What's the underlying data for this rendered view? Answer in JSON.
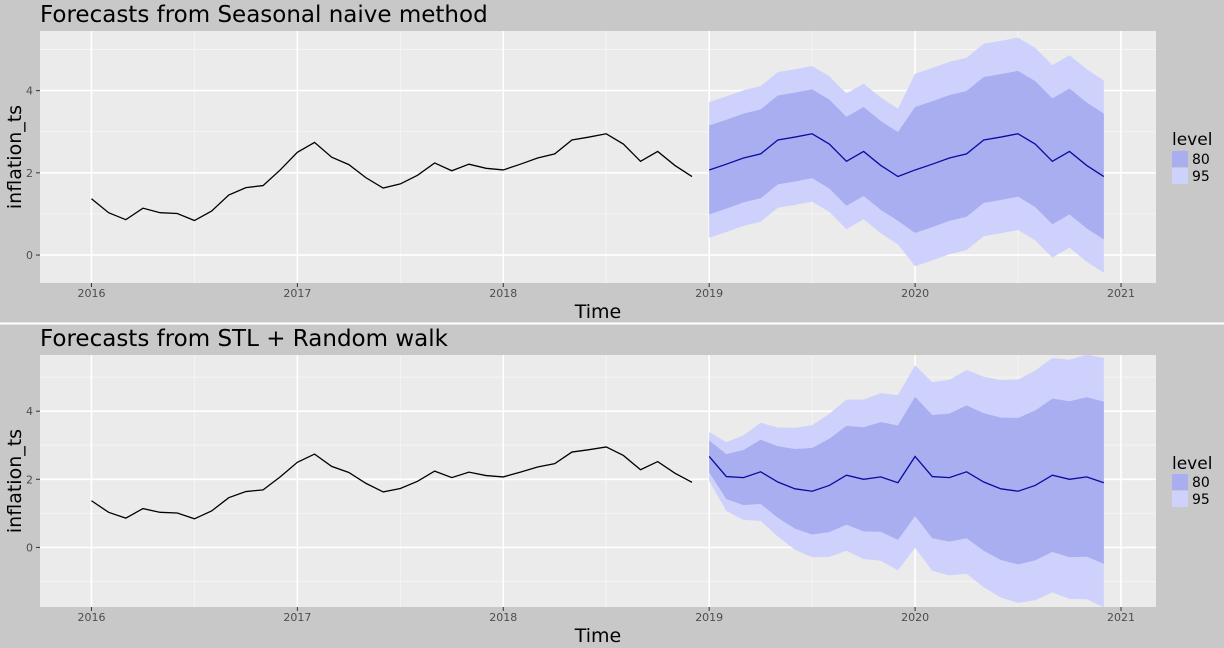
{
  "colors": {
    "background": "#c8c8c8",
    "panel": "#ebebeb",
    "grid_major": "#ffffff",
    "grid_minor": "#f5f5f5",
    "band80": "#a8aef0",
    "band95": "#cdd1fb",
    "forecast_line": "#0a0aa0",
    "history_line": "#000000",
    "divider": "#ffffff"
  },
  "chart_data": [
    {
      "type": "line",
      "title": "Forecasts from Seasonal naive method",
      "xlabel": "Time",
      "ylabel": "inflation_ts",
      "xlim": [
        2015.75,
        2021.17
      ],
      "ylim": [
        -0.68,
        5.45
      ],
      "x_ticks": [
        2016,
        2017,
        2018,
        2019,
        2020,
        2021
      ],
      "x_tick_labels": [
        "2016",
        "2017",
        "2018",
        "2019",
        "2020",
        "2021"
      ],
      "y_ticks": [
        0,
        2,
        4
      ],
      "y_tick_labels": [
        "0",
        "2",
        "4"
      ],
      "grid": true,
      "legend": {
        "title": "level",
        "position": "right",
        "entries": [
          "80",
          "95"
        ]
      },
      "history": {
        "start": 2016.0,
        "step": 0.08333,
        "values": [
          1.37,
          1.03,
          0.86,
          1.14,
          1.03,
          1.01,
          0.84,
          1.07,
          1.46,
          1.64,
          1.69,
          2.07,
          2.5,
          2.74,
          2.38,
          2.2,
          1.88,
          1.63,
          1.73,
          1.94,
          2.24,
          2.05,
          2.21,
          2.11,
          2.07,
          2.21,
          2.36,
          2.46,
          2.8,
          2.87,
          2.95,
          2.7,
          2.28,
          2.52,
          2.18,
          1.91
        ]
      },
      "forecast": {
        "start": 2019.0,
        "step": 0.08333,
        "mean": [
          2.07,
          2.21,
          2.36,
          2.46,
          2.8,
          2.87,
          2.95,
          2.7,
          2.28,
          2.52,
          2.18,
          1.91,
          2.07,
          2.21,
          2.36,
          2.46,
          2.8,
          2.87,
          2.95,
          2.7,
          2.28,
          2.52,
          2.18,
          1.91
        ],
        "lo80": [
          0.99,
          1.13,
          1.28,
          1.38,
          1.72,
          1.79,
          1.87,
          1.62,
          1.2,
          1.44,
          1.1,
          0.83,
          0.54,
          0.68,
          0.83,
          0.93,
          1.27,
          1.34,
          1.42,
          1.17,
          0.75,
          0.99,
          0.65,
          0.38
        ],
        "hi80": [
          3.15,
          3.29,
          3.44,
          3.54,
          3.88,
          3.95,
          4.03,
          3.78,
          3.36,
          3.6,
          3.26,
          2.99,
          3.6,
          3.74,
          3.89,
          3.99,
          4.33,
          4.4,
          4.48,
          4.23,
          3.81,
          4.05,
          3.71,
          3.44
        ],
        "lo95": [
          0.42,
          0.56,
          0.71,
          0.81,
          1.15,
          1.22,
          1.3,
          1.05,
          0.63,
          0.87,
          0.53,
          0.26,
          -0.27,
          -0.13,
          0.02,
          0.12,
          0.46,
          0.53,
          0.61,
          0.36,
          -0.06,
          0.18,
          -0.16,
          -0.43
        ],
        "hi95": [
          3.72,
          3.86,
          4.01,
          4.11,
          4.45,
          4.52,
          4.6,
          4.35,
          3.93,
          4.17,
          3.83,
          3.56,
          4.41,
          4.55,
          4.7,
          4.8,
          5.14,
          5.21,
          5.29,
          5.04,
          4.62,
          4.86,
          4.52,
          4.25
        ]
      }
    },
    {
      "type": "line",
      "title": "Forecasts from STL +  Random walk",
      "xlabel": "Time",
      "ylabel": "inflation_ts",
      "xlim": [
        2015.75,
        2021.17
      ],
      "ylim": [
        -1.75,
        5.65
      ],
      "x_ticks": [
        2016,
        2017,
        2018,
        2019,
        2020,
        2021
      ],
      "x_tick_labels": [
        "2016",
        "2017",
        "2018",
        "2019",
        "2020",
        "2021"
      ],
      "y_ticks": [
        0,
        2,
        4
      ],
      "y_tick_labels": [
        "0",
        "2",
        "4"
      ],
      "grid": true,
      "legend": {
        "title": "level",
        "position": "right",
        "entries": [
          "80",
          "95"
        ]
      },
      "history": {
        "start": 2016.0,
        "step": 0.08333,
        "values": [
          1.37,
          1.03,
          0.86,
          1.14,
          1.03,
          1.01,
          0.84,
          1.07,
          1.46,
          1.64,
          1.69,
          2.07,
          2.5,
          2.74,
          2.38,
          2.2,
          1.88,
          1.63,
          1.73,
          1.94,
          2.24,
          2.05,
          2.21,
          2.11,
          2.07,
          2.21,
          2.36,
          2.46,
          2.8,
          2.87,
          2.95,
          2.7,
          2.28,
          2.52,
          2.18,
          1.91
        ]
      },
      "forecast": {
        "start": 2019.0,
        "step": 0.08333,
        "mean": [
          2.67,
          2.08,
          2.05,
          2.22,
          1.92,
          1.72,
          1.65,
          1.82,
          2.12,
          2.0,
          2.07,
          1.9,
          2.67,
          2.08,
          2.05,
          2.22,
          1.92,
          1.72,
          1.65,
          1.82,
          2.12,
          2.0,
          2.07,
          1.9
        ],
        "lo80": [
          2.2,
          1.42,
          1.24,
          1.28,
          0.87,
          0.55,
          0.38,
          0.45,
          0.67,
          0.47,
          0.46,
          0.22,
          0.92,
          0.27,
          0.17,
          0.27,
          -0.1,
          -0.37,
          -0.5,
          -0.38,
          -0.13,
          -0.29,
          -0.27,
          -0.48
        ],
        "hi80": [
          3.14,
          2.74,
          2.86,
          3.16,
          2.97,
          2.89,
          2.92,
          3.19,
          3.57,
          3.53,
          3.68,
          3.58,
          4.42,
          3.89,
          3.93,
          4.17,
          3.94,
          3.81,
          3.8,
          4.02,
          4.37,
          4.29,
          4.41,
          4.28
        ],
        "lo95": [
          1.95,
          1.07,
          0.81,
          0.78,
          0.32,
          -0.07,
          -0.29,
          -0.28,
          -0.1,
          -0.34,
          -0.39,
          -0.67,
          -0.01,
          -0.69,
          -0.82,
          -0.77,
          -1.17,
          -1.47,
          -1.63,
          -1.55,
          -1.32,
          -1.51,
          -1.52,
          -1.76
        ],
        "hi95": [
          3.39,
          3.09,
          3.29,
          3.66,
          3.52,
          3.51,
          3.59,
          3.92,
          4.34,
          4.34,
          4.53,
          4.47,
          5.35,
          4.85,
          4.92,
          5.21,
          5.01,
          4.91,
          4.93,
          5.19,
          5.56,
          5.51,
          5.66,
          5.56
        ]
      }
    }
  ]
}
